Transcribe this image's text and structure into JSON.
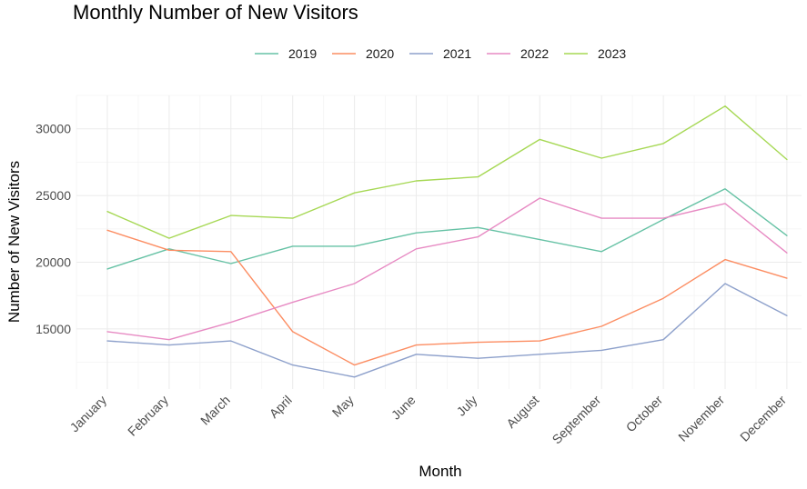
{
  "chart_data": {
    "type": "line",
    "title": "Monthly Number of New Visitors",
    "xlabel": "Month",
    "ylabel": "Number of New Visitors",
    "categories": [
      "January",
      "February",
      "March",
      "April",
      "May",
      "June",
      "July",
      "August",
      "September",
      "October",
      "November",
      "December"
    ],
    "ylim": [
      10500,
      32500
    ],
    "yticks": [
      15000,
      20000,
      25000,
      30000
    ],
    "ytick_labels": [
      "15000",
      "20000",
      "25000",
      "30000"
    ],
    "grid": true,
    "legend_position": "top",
    "series": [
      {
        "name": "2019",
        "color": "#66c2a5",
        "values": [
          19500,
          21000,
          19900,
          21200,
          21200,
          22200,
          22600,
          21700,
          20800,
          23200,
          25500,
          22000
        ]
      },
      {
        "name": "2020",
        "color": "#fc8d62",
        "values": [
          22400,
          20900,
          20800,
          14800,
          12300,
          13800,
          14000,
          14100,
          15200,
          17300,
          20200,
          18800
        ]
      },
      {
        "name": "2021",
        "color": "#8da0cb",
        "values": [
          14100,
          13800,
          14100,
          12300,
          11400,
          13100,
          12800,
          13100,
          13400,
          14200,
          18400,
          16000
        ]
      },
      {
        "name": "2022",
        "color": "#e78ac3",
        "values": [
          14800,
          14200,
          15500,
          17000,
          18400,
          21000,
          21900,
          24800,
          23300,
          23300,
          24400,
          20700
        ]
      },
      {
        "name": "2023",
        "color": "#a6d854",
        "values": [
          23800,
          21800,
          23500,
          23300,
          25200,
          26100,
          26400,
          29200,
          27800,
          28900,
          31700,
          27700
        ]
      }
    ]
  }
}
